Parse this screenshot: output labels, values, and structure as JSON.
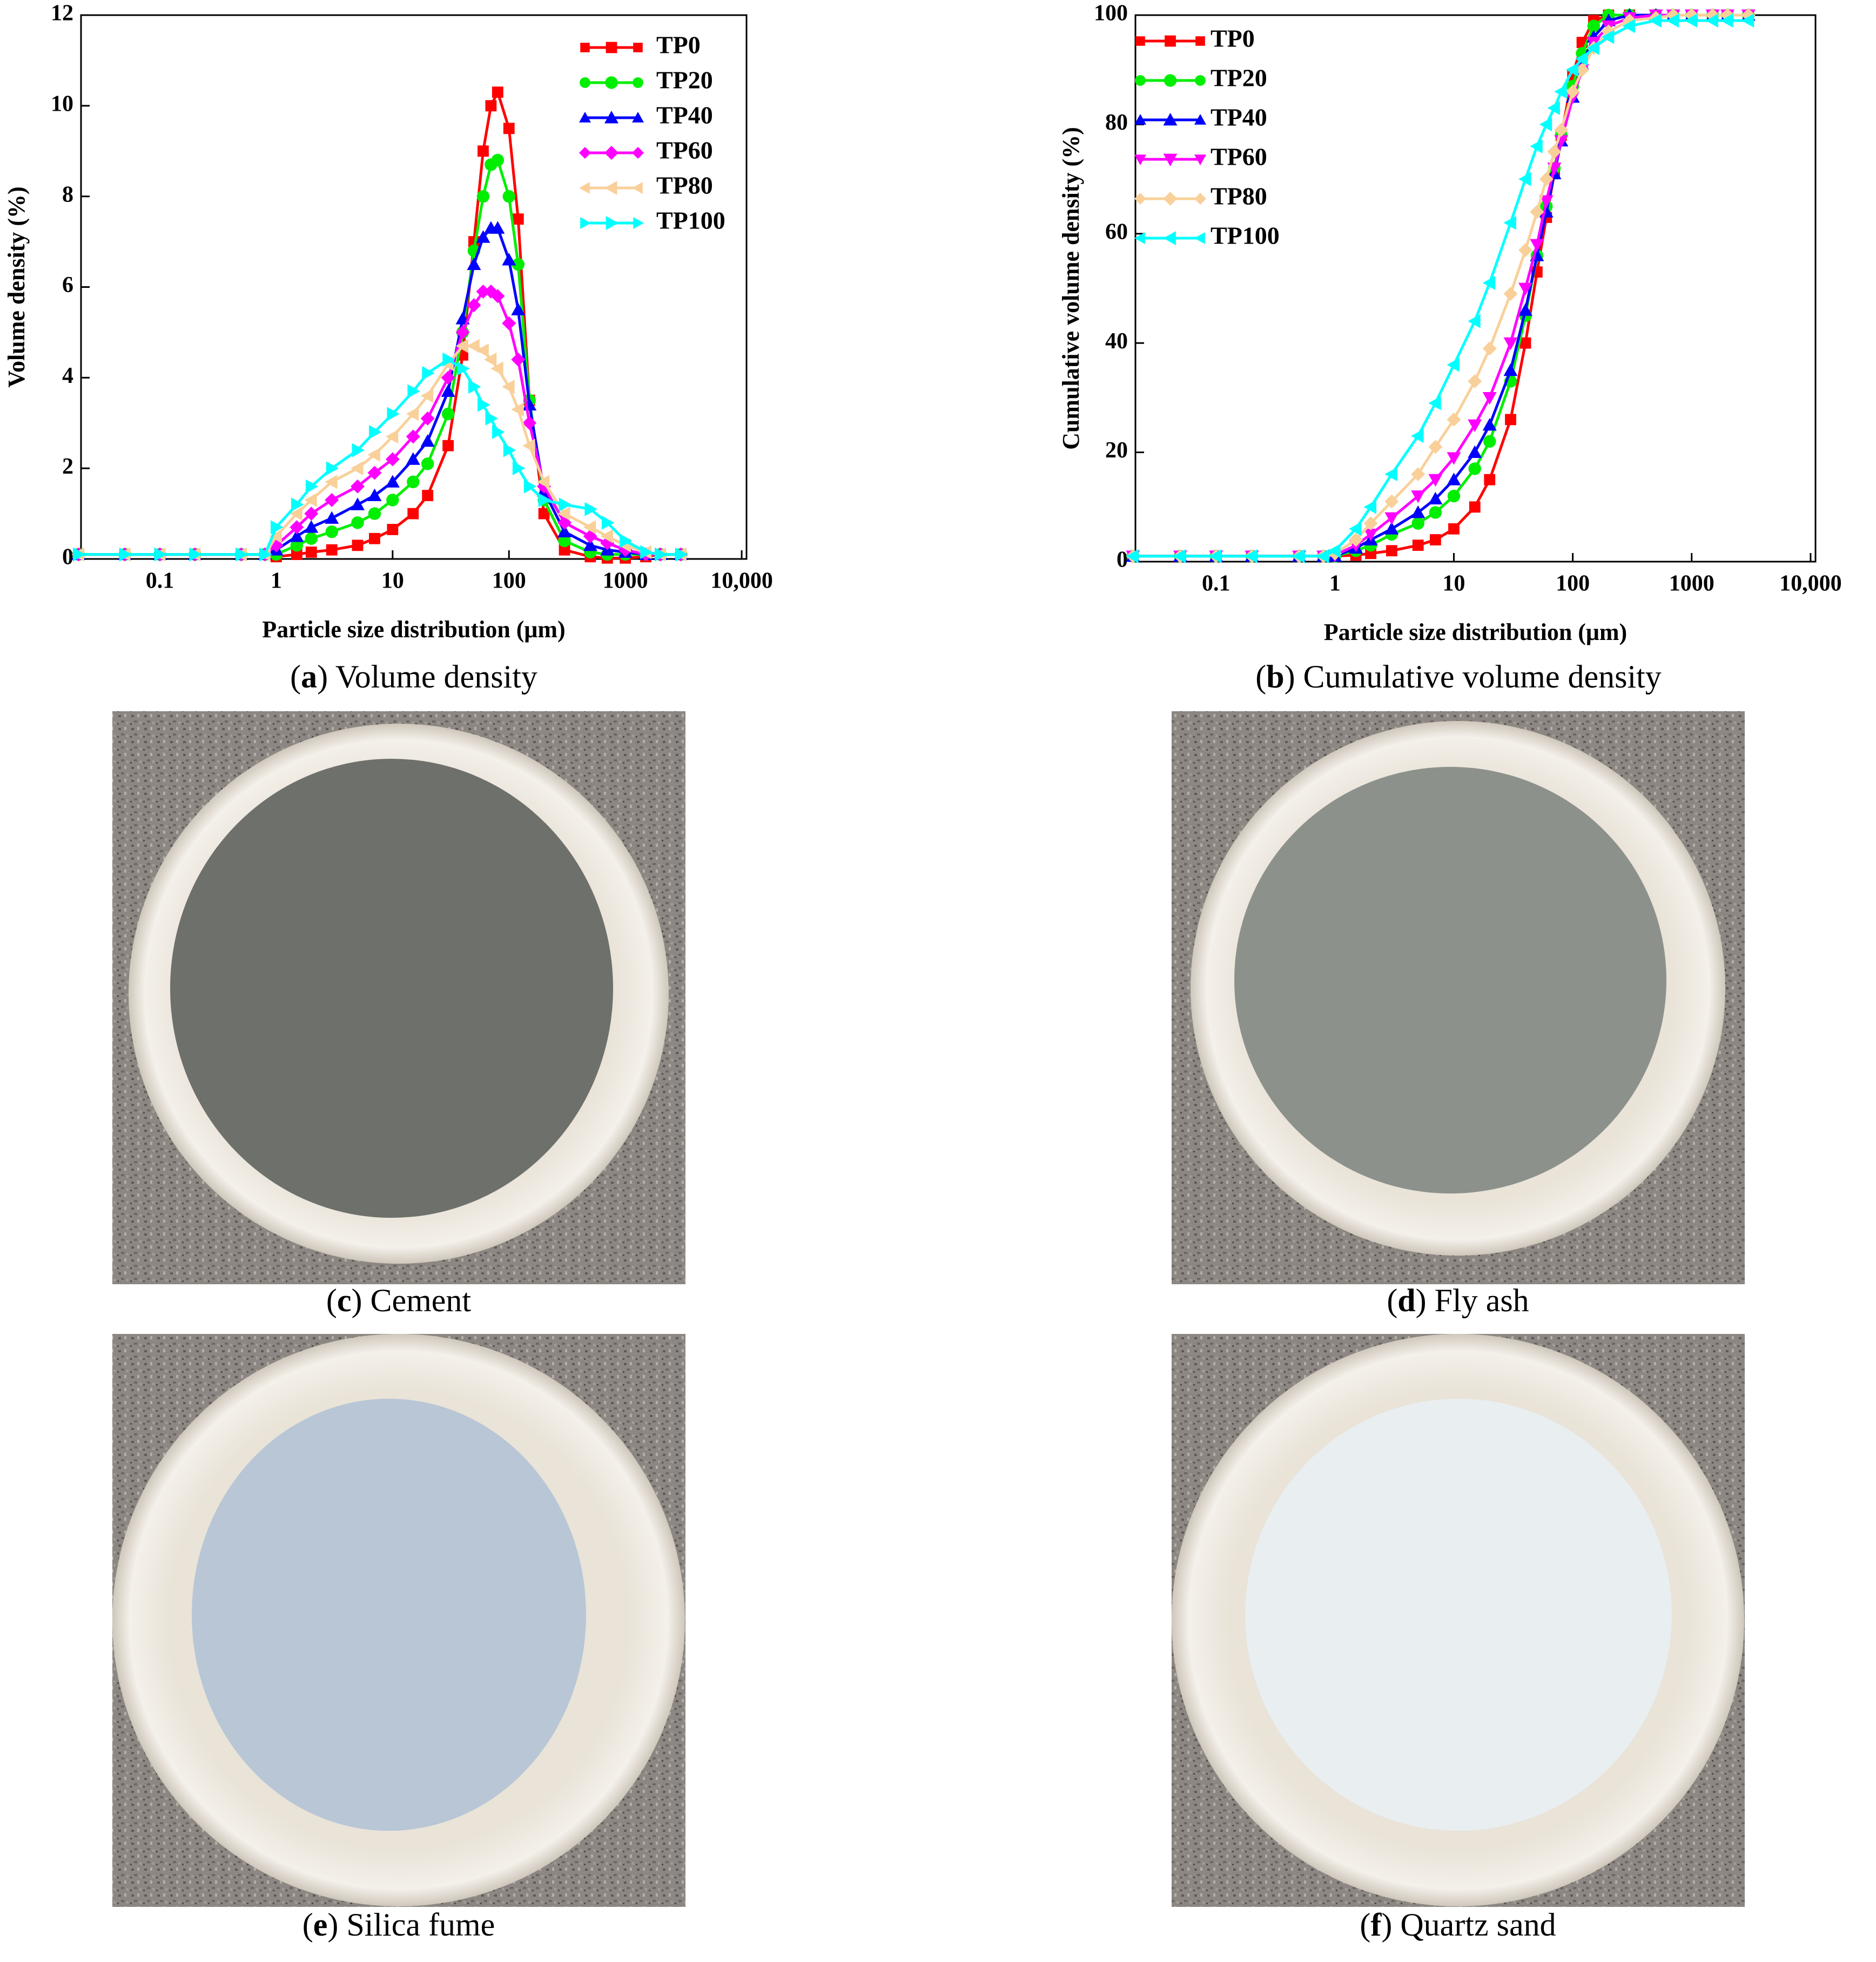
{
  "chart_data": [
    {
      "type": "line",
      "xlabel": "Particle size distribution (μm)",
      "ylabel": "Volume density (%)",
      "log_x": true,
      "legend": "upper right",
      "xlim": [
        0.021,
        11000
      ],
      "xticks": [
        0.1,
        1,
        10,
        100,
        1000,
        {
          "value": 10000,
          "label": "10,000"
        }
      ],
      "ylim": [
        0,
        12
      ],
      "yticks": [
        0,
        2,
        4,
        6,
        8,
        10,
        12
      ],
      "x": [
        0.02,
        0.05,
        0.1,
        0.2,
        0.5,
        0.8,
        1,
        1.5,
        2,
        3,
        5,
        7,
        10,
        15,
        20,
        30,
        40,
        50,
        60,
        70,
        80,
        100,
        120,
        150,
        200,
        300,
        500,
        700,
        1000,
        1500,
        2000,
        3000
      ],
      "series": [
        {
          "name": "TP0",
          "color": "#ff0000",
          "marker": "square",
          "values": [
            0.1,
            0.1,
            0.1,
            0.1,
            0.1,
            0.1,
            0.05,
            0.1,
            0.15,
            0.2,
            0.3,
            0.45,
            0.65,
            1.0,
            1.4,
            2.5,
            4.5,
            7,
            9,
            10,
            10.3,
            9.5,
            7.5,
            3.5,
            1.0,
            0.2,
            0.05,
            0.02,
            0.02,
            0.05,
            0.1,
            0.1
          ]
        },
        {
          "name": "TP20",
          "color": "#00ee00",
          "marker": "circle",
          "values": [
            0.1,
            0.1,
            0.1,
            0.1,
            0.1,
            0.1,
            0.1,
            0.3,
            0.45,
            0.6,
            0.8,
            1.0,
            1.3,
            1.7,
            2.1,
            3.2,
            5,
            6.8,
            8.0,
            8.7,
            8.8,
            8.0,
            6.5,
            3.5,
            1.3,
            0.4,
            0.15,
            0.1,
            0.1,
            0.1,
            0.1,
            0.1
          ]
        },
        {
          "name": "TP40",
          "color": "#0000ff",
          "marker": "triangle-up",
          "values": [
            0.1,
            0.1,
            0.1,
            0.1,
            0.1,
            0.1,
            0.2,
            0.5,
            0.7,
            0.9,
            1.2,
            1.4,
            1.7,
            2.2,
            2.6,
            3.7,
            5.3,
            6.5,
            7.1,
            7.3,
            7.3,
            6.6,
            5.5,
            3.4,
            1.5,
            0.6,
            0.3,
            0.2,
            0.15,
            0.1,
            0.1,
            0.1
          ]
        },
        {
          "name": "TP60",
          "color": "#ff00ff",
          "marker": "diamond",
          "values": [
            0.1,
            0.1,
            0.1,
            0.1,
            0.1,
            0.1,
            0.3,
            0.7,
            1.0,
            1.3,
            1.6,
            1.9,
            2.2,
            2.7,
            3.1,
            4.0,
            5.0,
            5.6,
            5.9,
            5.9,
            5.8,
            5.2,
            4.4,
            3.0,
            1.6,
            0.8,
            0.5,
            0.35,
            0.2,
            0.1,
            0.1,
            0.1
          ]
        },
        {
          "name": "TP80",
          "color": "#f9d09a",
          "marker": "triangle-left",
          "values": [
            0.1,
            0.1,
            0.1,
            0.1,
            0.1,
            0.1,
            0.5,
            1.0,
            1.3,
            1.7,
            2.0,
            2.3,
            2.7,
            3.2,
            3.6,
            4.3,
            4.7,
            4.7,
            4.6,
            4.4,
            4.2,
            3.8,
            3.3,
            2.5,
            1.7,
            1.0,
            0.7,
            0.5,
            0.3,
            0.15,
            0.1,
            0.1
          ]
        },
        {
          "name": "TP100",
          "color": "#00ffff",
          "marker": "triangle-right",
          "values": [
            0.1,
            0.1,
            0.1,
            0.1,
            0.1,
            0.1,
            0.7,
            1.2,
            1.6,
            2.0,
            2.4,
            2.8,
            3.2,
            3.7,
            4.1,
            4.4,
            4.2,
            3.8,
            3.4,
            3.1,
            2.8,
            2.4,
            2.0,
            1.6,
            1.3,
            1.2,
            1.1,
            0.8,
            0.4,
            0.15,
            0.1,
            0.1
          ]
        }
      ]
    },
    {
      "type": "line",
      "xlabel": "Particle size distribution (μm)",
      "ylabel": "Cumulative volume density (%)",
      "log_x": true,
      "legend": "upper left",
      "xlim": [
        0.021,
        11000
      ],
      "xticks": [
        0.1,
        1,
        10,
        100,
        1000,
        {
          "value": 10000,
          "label": "10,000"
        }
      ],
      "ylim": [
        0,
        100
      ],
      "yticks": [
        0,
        20,
        40,
        60,
        80,
        100
      ],
      "x": [
        0.02,
        0.05,
        0.1,
        0.2,
        0.5,
        0.8,
        1,
        1.5,
        2,
        3,
        5,
        7,
        10,
        15,
        20,
        30,
        40,
        50,
        60,
        70,
        80,
        100,
        120,
        150,
        200,
        300,
        500,
        700,
        1000,
        1500,
        2000,
        3000
      ],
      "series": [
        {
          "name": "TP0",
          "color": "#ff0000",
          "marker": "square",
          "values": [
            1,
            1,
            1,
            1,
            1,
            1,
            1,
            1.2,
            1.5,
            2,
            3,
            4,
            6,
            10,
            15,
            26,
            40,
            53,
            63,
            71,
            78,
            89,
            95,
            99,
            100,
            100,
            100,
            100,
            100,
            100,
            100,
            100
          ]
        },
        {
          "name": "TP20",
          "color": "#00ee00",
          "marker": "circle",
          "values": [
            1,
            1,
            1,
            1,
            1,
            1,
            1,
            2,
            3,
            5,
            7,
            9,
            12,
            17,
            22,
            33,
            45,
            56,
            65,
            72,
            78,
            87,
            93,
            98,
            100,
            100,
            100,
            100,
            100,
            100,
            100,
            100
          ]
        },
        {
          "name": "TP40",
          "color": "#0000ff",
          "marker": "triangle-up",
          "values": [
            1,
            1,
            1,
            1,
            1,
            1,
            1,
            2.5,
            4,
            6,
            9,
            11.5,
            15,
            20,
            25,
            35,
            46,
            56,
            64,
            71,
            77,
            85,
            91,
            96,
            99,
            100,
            100,
            100,
            100,
            100,
            100,
            100
          ]
        },
        {
          "name": "TP60",
          "color": "#ff00ff",
          "marker": "triangle-down",
          "values": [
            1,
            1,
            1,
            1,
            1,
            1,
            1.2,
            3,
            5,
            8,
            12,
            15,
            19,
            25,
            30,
            40,
            50,
            58,
            66,
            72,
            77,
            85,
            90,
            95,
            98,
            99.5,
            100,
            100,
            100,
            100,
            100,
            100
          ]
        },
        {
          "name": "TP80",
          "color": "#f9d09a",
          "marker": "diamond",
          "values": [
            1,
            1,
            1,
            1,
            1,
            1,
            1.5,
            4,
            7,
            11,
            16,
            21,
            26,
            33,
            39,
            49,
            57,
            64,
            70,
            75,
            79,
            86,
            90,
            94,
            97,
            99,
            99.5,
            100,
            100,
            100,
            100,
            100
          ]
        },
        {
          "name": "TP100",
          "color": "#00ffff",
          "marker": "triangle-left",
          "values": [
            1,
            1,
            1,
            1,
            1,
            1,
            2,
            6,
            10,
            16,
            23,
            29,
            36,
            44,
            51,
            62,
            70,
            76,
            80,
            83,
            86,
            90,
            92,
            94,
            96,
            98,
            99,
            99,
            99,
            99,
            99,
            99
          ]
        }
      ]
    }
  ],
  "captions": [
    {
      "prefix": "(",
      "letter": "a",
      "suffix": ") Volume density"
    },
    {
      "prefix": "(",
      "letter": "b",
      "suffix": ") Cumulative volume density"
    },
    {
      "prefix": "(",
      "letter": "c",
      "suffix": ") Cement"
    },
    {
      "prefix": "(",
      "letter": "d",
      "suffix": ") Fly ash"
    },
    {
      "prefix": "(",
      "letter": "e",
      "suffix": ") Silica fume"
    },
    {
      "prefix": "(",
      "letter": "f",
      "suffix": ") Quartz sand"
    }
  ]
}
